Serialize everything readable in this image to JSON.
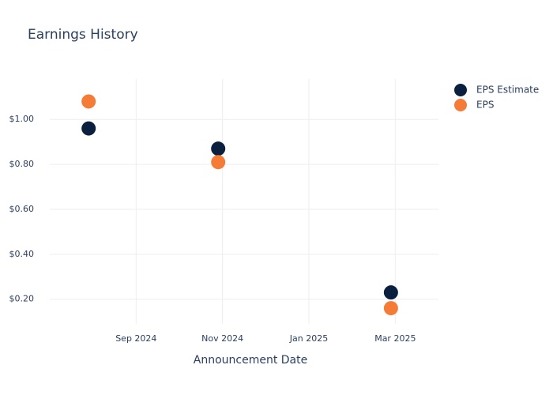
{
  "chart_data": {
    "type": "scatter",
    "title": "Earnings History",
    "x_label": "Announcement Date",
    "x": [
      "2024-07",
      "2024-10",
      "2025-02"
    ],
    "series": [
      {
        "name": "EPS Estimate",
        "color": "#0b1f3f",
        "values": [
          0.96,
          0.87,
          0.23
        ]
      },
      {
        "name": "EPS",
        "color": "#f47c36",
        "values": [
          1.08,
          0.81,
          0.16
        ]
      }
    ],
    "xlim": [
      "2024-07",
      "2025-04"
    ],
    "xticks": [
      {
        "value": "2024-09",
        "label": "Sep 2024"
      },
      {
        "value": "2024-11",
        "label": "Nov 2024"
      },
      {
        "value": "2025-01",
        "label": "Jan 2025"
      },
      {
        "value": "2025-03",
        "label": "Mar 2025"
      }
    ],
    "ylim": [
      0.09,
      1.18
    ],
    "yticks": [
      {
        "value": 0.2,
        "label": "$0.20"
      },
      {
        "value": 0.4,
        "label": "$0.40"
      },
      {
        "value": 0.6,
        "label": "$0.60"
      },
      {
        "value": 0.8,
        "label": "$0.80"
      },
      {
        "value": 1.0,
        "label": "$1.00"
      }
    ],
    "grid": true,
    "legend": "right"
  }
}
